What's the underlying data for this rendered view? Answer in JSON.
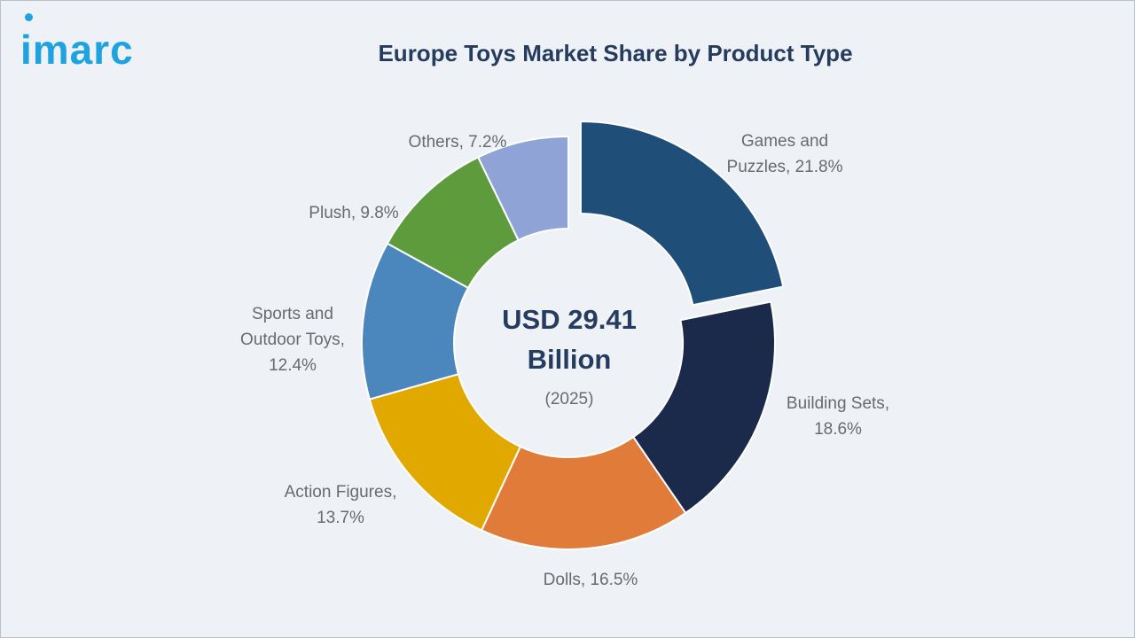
{
  "brand": {
    "logo_text": "imarc",
    "color": "#1ea3e0"
  },
  "chart_data": {
    "type": "pie",
    "variant": "donut",
    "title": "Europe Toys Market Share by Product Type",
    "center": {
      "line1": "USD 29.41",
      "line2": "Billion",
      "line3": "(2025)"
    },
    "unit": "%",
    "slices": [
      {
        "label": "Games and Puzzles",
        "value": 21.8,
        "color": "#1f4e79",
        "exploded": true,
        "label_lines": [
          "Games and",
          "Puzzles, 21.8%"
        ]
      },
      {
        "label": "Building Sets",
        "value": 18.6,
        "color": "#1b2a4a",
        "label_lines": [
          "Building Sets,",
          "18.6%"
        ]
      },
      {
        "label": "Dolls",
        "value": 16.5,
        "color": "#e07b39",
        "label_lines": [
          "Dolls, 16.5%"
        ]
      },
      {
        "label": "Action Figures",
        "value": 13.7,
        "color": "#e1a800",
        "label_lines": [
          "Action Figures,",
          "13.7%"
        ]
      },
      {
        "label": "Sports and Outdoor Toys",
        "value": 12.4,
        "color": "#4b86bd",
        "label_lines": [
          "Sports and",
          "Outdoor Toys,",
          "12.4%"
        ]
      },
      {
        "label": "Plush",
        "value": 9.8,
        "color": "#5e9b3d",
        "label_lines": [
          "Plush, 9.8%"
        ]
      },
      {
        "label": "Others",
        "value": 7.2,
        "color": "#8fa3d6",
        "label_lines": [
          "Others, 7.2%"
        ]
      }
    ]
  }
}
